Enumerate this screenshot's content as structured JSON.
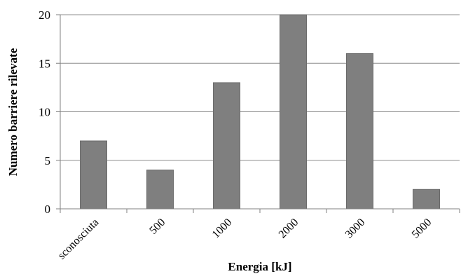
{
  "chart_data": {
    "type": "bar",
    "categories": [
      "sconosciuta",
      "500",
      "1000",
      "2000",
      "3000",
      "5000"
    ],
    "values": [
      7,
      4,
      13,
      20,
      16,
      2
    ],
    "title": "",
    "xlabel": "Energia [kJ]",
    "ylabel": "Numero barriere rilevate",
    "ylim": [
      0,
      20
    ],
    "yticks": [
      0,
      5,
      10,
      15,
      20
    ],
    "grid": true,
    "bar_color": "#7f7f7f",
    "bar_edge_color": "#6b6b6b",
    "grid_color": "#8c8c8c"
  }
}
